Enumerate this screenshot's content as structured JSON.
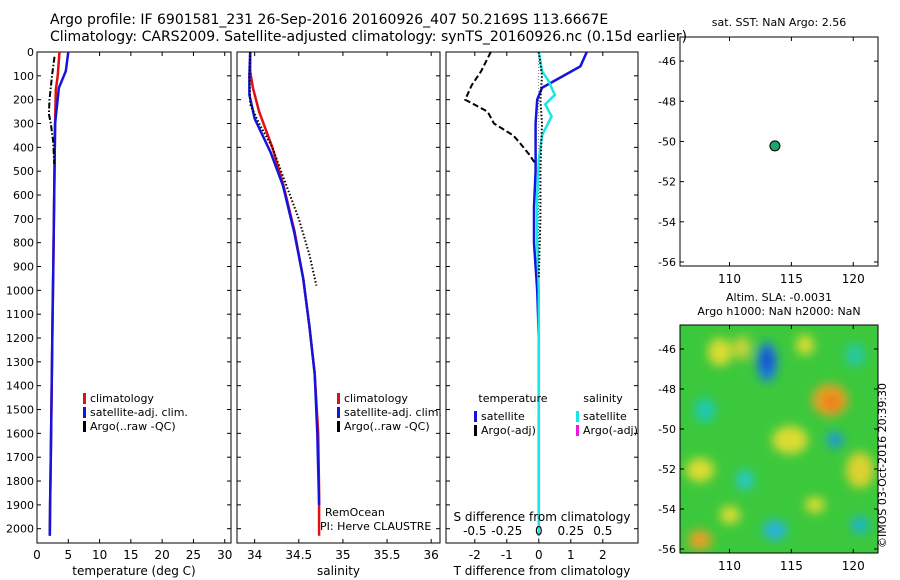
{
  "header": {
    "title_line1": "Argo profile: IF 6901581_231 26-Sep-2016 20160926_407 50.2169S 113.6667E",
    "title_line2": "Climatology: CARS2009. Satellite-adjusted climatology: synTS_20160926.nc (0.15d earlier)"
  },
  "colors": {
    "climatology": "#e01010",
    "satellite": "#1414dc",
    "argo": "#000000",
    "satellite_salinity": "#19e6e6",
    "argo_adj_salinity": "#e619e6",
    "dot": "#1ca56a"
  },
  "chart_data": [
    {
      "id": "temperature",
      "type": "line",
      "xlabel": "temperature (deg C)",
      "xlim": [
        0,
        31
      ],
      "ylim": [
        2060,
        0
      ],
      "y_reversed": true,
      "xticks": [
        0,
        5,
        10,
        15,
        20,
        25,
        30
      ],
      "yticks": [
        0,
        100,
        200,
        300,
        400,
        500,
        600,
        700,
        800,
        900,
        1000,
        1100,
        1200,
        1300,
        1400,
        1500,
        1600,
        1700,
        1800,
        1900,
        2000
      ],
      "legend": [
        "climatology",
        "satellite-adj. clim.",
        "Argo(..raw -QC)"
      ],
      "series": [
        {
          "name": "climatology",
          "style": "solid",
          "color": "#e01010",
          "x": [
            3.6,
            3.3,
            3.0,
            2.9,
            2.8,
            2.7,
            2.6,
            2.5,
            2.4,
            2.3,
            2.2,
            2.1,
            2.05
          ],
          "y": [
            0,
            100,
            160,
            300,
            500,
            700,
            900,
            1100,
            1300,
            1500,
            1700,
            1900,
            2030
          ]
        },
        {
          "name": "satellite-adj. clim.",
          "style": "solid",
          "color": "#1414dc",
          "x": [
            5.0,
            4.6,
            3.5,
            2.9,
            2.8,
            2.7,
            2.6,
            2.5,
            2.4,
            2.3,
            2.2,
            2.1,
            2.05
          ],
          "y": [
            0,
            80,
            150,
            300,
            500,
            700,
            900,
            1100,
            1300,
            1500,
            1700,
            1900,
            2030
          ]
        },
        {
          "name": "Argo(..raw -QC)",
          "style": "dashdot",
          "color": "#000000",
          "x": [
            2.8,
            2.4,
            2.0,
            1.9,
            2.2,
            2.6,
            2.7,
            2.75
          ],
          "y": [
            20,
            100,
            200,
            260,
            300,
            380,
            440,
            470
          ]
        }
      ]
    },
    {
      "id": "salinity",
      "type": "line",
      "xlabel": "salinity",
      "xlim": [
        33.8,
        36.1
      ],
      "ylim": [
        2060,
        0
      ],
      "y_reversed": true,
      "xticks": [
        34,
        34.5,
        35,
        35.5,
        36
      ],
      "legend": [
        "climatology",
        "satellite-adj. clim.",
        "Argo(..raw -QC)"
      ],
      "annotation": [
        "RemOcean",
        "PI: Herve CLAUSTRE"
      ],
      "series": [
        {
          "name": "climatology",
          "style": "solid",
          "color": "#e01010",
          "x": [
            33.95,
            33.95,
            33.98,
            34.05,
            34.2,
            34.32,
            34.45,
            34.55,
            34.62,
            34.68,
            34.72,
            34.73,
            34.73
          ],
          "y": [
            0,
            80,
            150,
            250,
            400,
            550,
            750,
            950,
            1150,
            1350,
            1600,
            1850,
            2030
          ]
        },
        {
          "name": "satellite-adj. clim.",
          "style": "solid",
          "color": "#1414dc",
          "x": [
            33.95,
            33.94,
            33.94,
            34.0,
            34.18,
            34.32,
            34.45,
            34.55,
            34.62,
            34.68,
            34.71,
            34.73
          ],
          "y": [
            0,
            100,
            180,
            280,
            420,
            560,
            760,
            950,
            1150,
            1350,
            1600,
            1900
          ]
        },
        {
          "name": "Argo(..raw -QC)",
          "style": "dotted",
          "color": "#000000",
          "x": [
            33.95,
            33.94,
            33.95,
            34.05,
            34.2,
            34.35,
            34.5,
            34.62,
            34.7
          ],
          "y": [
            0,
            100,
            220,
            300,
            400,
            550,
            700,
            850,
            980
          ]
        }
      ]
    },
    {
      "id": "difference",
      "type": "line",
      "xlabel": "T difference from climatology",
      "x2label": "S difference from climatology",
      "xlim": [
        -2.9,
        3.1
      ],
      "ylim": [
        2060,
        0
      ],
      "y_reversed": true,
      "xticks": [
        -2,
        -1,
        0,
        1,
        2
      ],
      "x2ticks": [
        {
          "label": "-0.5",
          "x": -2
        },
        {
          "label": "-0.25",
          "x": -1
        },
        {
          "label": "0",
          "x": 0
        },
        {
          "label": "0.25",
          "x": 1
        },
        {
          "label": "0.5",
          "x": 2
        }
      ],
      "legend_headers": [
        "temperature",
        "salinity"
      ],
      "legend": [
        "satellite",
        "Argo(-adj)",
        "satellite",
        "Argo(-adj)"
      ],
      "series": [
        {
          "name": "satellite",
          "group": "temperature",
          "style": "solid",
          "color": "#1414dc",
          "x": [
            1.5,
            1.3,
            0.5,
            0.1,
            -0.05,
            -0.1,
            -0.1,
            -0.15,
            -0.15,
            -0.1,
            -0.05,
            0,
            0,
            0,
            0,
            0
          ],
          "y": [
            0,
            60,
            120,
            150,
            200,
            300,
            500,
            650,
            800,
            900,
            1000,
            1200,
            1400,
            1600,
            1800,
            2030
          ]
        },
        {
          "name": "Argo(-adj)",
          "group": "temperature",
          "style": "dashed",
          "color": "#000000",
          "x": [
            -1.5,
            -1.8,
            -2.1,
            -2.3,
            -1.6,
            -1.4,
            -0.8,
            -0.6,
            -0.3,
            -0.1
          ],
          "y": [
            0,
            80,
            140,
            200,
            250,
            300,
            350,
            380,
            430,
            470
          ]
        },
        {
          "name": "satellite",
          "group": "salinity",
          "style": "solid",
          "color": "#19e6e6",
          "x": [
            0,
            0.1,
            0.3,
            0.5,
            0.2,
            0.4,
            0.1,
            0,
            -0.05,
            -0.05,
            0,
            0,
            0,
            0
          ],
          "y": [
            0,
            80,
            120,
            180,
            220,
            270,
            350,
            450,
            600,
            800,
            1000,
            1400,
            1800,
            2030
          ]
        },
        {
          "name": "Argo(-adj)",
          "group": "salinity",
          "style": "dotted",
          "color": "#000000",
          "x": [
            0,
            0.1,
            0.05,
            0.1,
            0.05,
            0.05,
            0
          ],
          "y": [
            0,
            100,
            200,
            300,
            500,
            700,
            950
          ]
        }
      ]
    },
    {
      "id": "sst_map",
      "type": "scatter",
      "title": "sat. SST: NaN Argo: 2.56",
      "xlim": [
        106,
        122
      ],
      "ylim": [
        -56.2,
        -44.8
      ],
      "xticks": [
        110,
        115,
        120
      ],
      "yticks": [
        -46,
        -48,
        -50,
        -52,
        -54,
        -56
      ],
      "points": [
        {
          "x": 113.67,
          "y": -50.22
        }
      ]
    },
    {
      "id": "sla_map",
      "type": "heatmap",
      "title": [
        "Altim. SLA: -0.0031",
        "Argo h1000: NaN h2000: NaN"
      ],
      "xlim": [
        106,
        122
      ],
      "ylim": [
        -56.2,
        -44.8
      ],
      "xticks": [
        110,
        115,
        120
      ],
      "yticks": [
        -46,
        -48,
        -50,
        -52,
        -54,
        -56
      ],
      "stamp": "©IMOS 03-Oct-2016 20:39:30"
    }
  ]
}
